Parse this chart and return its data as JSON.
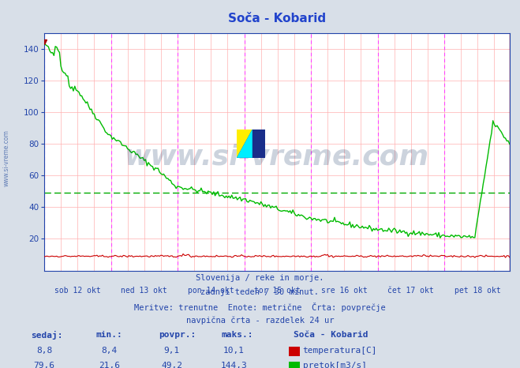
{
  "title": "Soča - Kobarid",
  "bg_color": "#d8dfe8",
  "plot_bg_color": "#ffffff",
  "grid_color_minor": "#ffb0b0",
  "grid_color_major": "#ff44ff",
  "title_color": "#2244cc",
  "axis_color": "#2244aa",
  "text_color": "#2244aa",
  "temp_color": "#cc0000",
  "flow_color": "#00bb00",
  "avg_flow_color": "#00aa00",
  "ylim": [
    0,
    150
  ],
  "yticks": [
    20,
    40,
    60,
    80,
    100,
    120,
    140
  ],
  "days": [
    "sob 12 okt",
    "ned 13 okt",
    "pon 14 okt",
    "tor 15 okt",
    "sre 16 okt",
    "čet 17 okt",
    "pet 18 okt"
  ],
  "n_points": 336,
  "avg_flow": 49.2,
  "subtitle_lines": [
    "Slovenija / reke in morje.",
    "zadnji teden / 30 minut.",
    "Meritve: trenutne  Enote: metrične  Črta: povprečje",
    "navpična črta - razdelek 24 ur"
  ],
  "table_headers": [
    "sedaj:",
    "min.:",
    "povpr.:",
    "maks.:"
  ],
  "table_row1": [
    "8,8",
    "8,4",
    "9,1",
    "10,1"
  ],
  "table_row2": [
    "79,6",
    "21,6",
    "49,2",
    "144,3"
  ],
  "station_label": "Soča - Kobarid",
  "legend_temp": "temperatura[C]",
  "legend_flow": "pretok[m3/s]"
}
